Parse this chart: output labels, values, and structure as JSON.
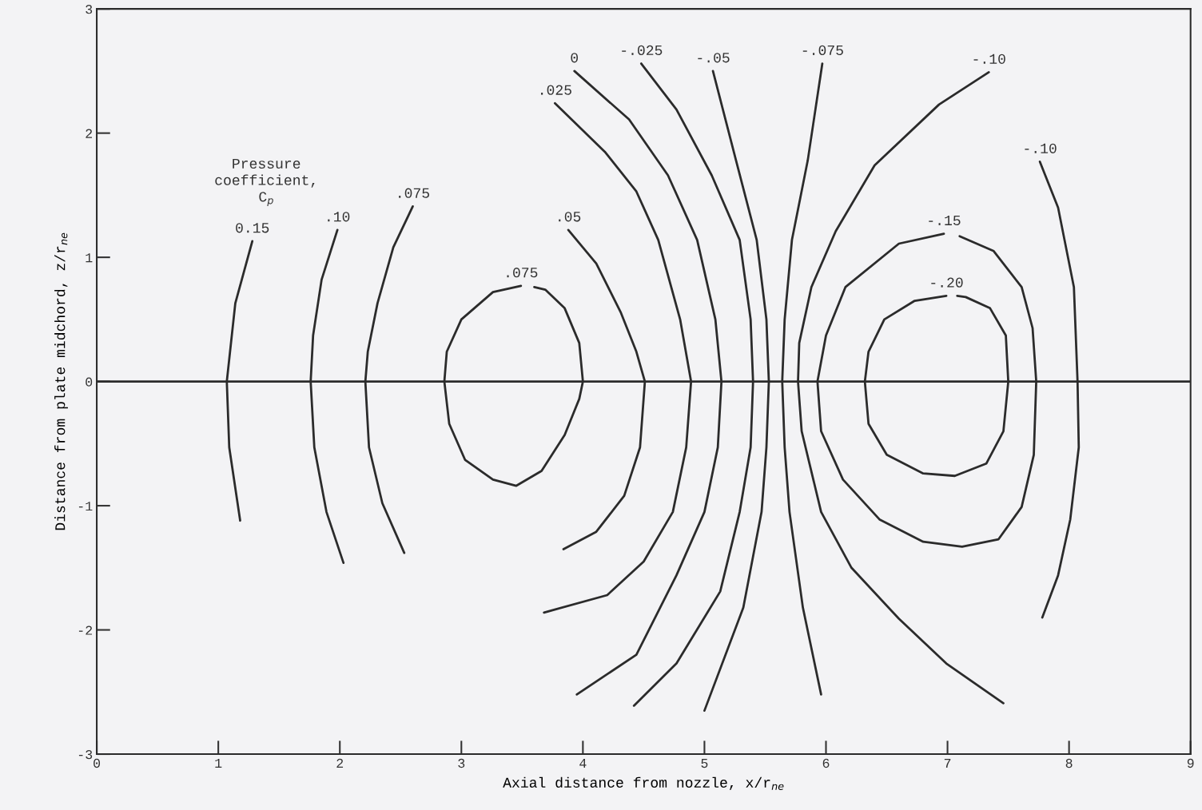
{
  "chart_data": {
    "type": "line",
    "xlabel": "Axial distance from nozzle, x/r$_{ne}$",
    "ylabel": "Distance from plate midchord, z/r$_{ne}$",
    "annotations": [
      "Pressure\ncoefficient,\nC$_{p}$"
    ],
    "xlim": [
      0,
      9
    ],
    "xticks": [
      0,
      1,
      2,
      3,
      4,
      5,
      6,
      7,
      8,
      9
    ],
    "ylim": [
      -3,
      3
    ],
    "yticks": [
      -3,
      -2,
      -1,
      0,
      1,
      2,
      3
    ],
    "grid": false,
    "legend": false,
    "marker": "none",
    "line_style": "solid",
    "ref_lines": [
      {
        "axis": "y",
        "value": 0,
        "color": "#2b2b2b"
      }
    ],
    "series": [
      {
        "name": "0.15",
        "color": "#2b2b2b",
        "x": [
          1.28,
          1.14,
          1.07,
          1.09,
          1.18
        ],
        "values": [
          1.13,
          0.63,
          0,
          -0.53,
          -1.12
        ]
      },
      {
        "name": ".10",
        "color": "#2b2b2b",
        "x": [
          1.98,
          1.85,
          1.78,
          1.76,
          1.79,
          1.89,
          2.03
        ],
        "values": [
          1.22,
          0.82,
          0.37,
          0,
          -0.53,
          -1.05,
          -1.46
        ]
      },
      {
        "name": ".075",
        "color": "#2b2b2b",
        "x": [
          2.6,
          2.44,
          2.31,
          2.23,
          2.21,
          2.24,
          2.35,
          2.53
        ],
        "values": [
          1.41,
          1.08,
          0.63,
          0.24,
          0,
          -0.53,
          -0.98,
          -1.38
        ]
      },
      {
        "name": ".075",
        "color": "#2b2b2b",
        "x": [
          3.49,
          3.26,
          3.0,
          2.88,
          2.86,
          2.9,
          3.03,
          3.26,
          3.45,
          3.66,
          3.85,
          3.97,
          4.0,
          3.97,
          3.85,
          3.69,
          3.6
        ],
        "values": [
          0.77,
          0.72,
          0.5,
          0.24,
          0,
          -0.34,
          -0.63,
          -0.79,
          -0.84,
          -0.72,
          -0.43,
          -0.14,
          0,
          0.31,
          0.59,
          0.74,
          0.76
        ]
      },
      {
        "name": ".05",
        "color": "#2b2b2b",
        "x": [
          3.88,
          4.11,
          4.31,
          4.44,
          4.51,
          4.47,
          4.34,
          4.11,
          3.84
        ],
        "values": [
          1.22,
          0.95,
          0.56,
          0.24,
          0,
          -0.53,
          -0.92,
          -1.21,
          -1.35
        ]
      },
      {
        "name": ".025",
        "color": "#2b2b2b",
        "x": [
          3.77,
          4.18,
          4.44,
          4.62,
          4.8,
          4.89,
          4.85,
          4.74,
          4.5,
          4.2,
          3.68
        ],
        "values": [
          2.24,
          1.85,
          1.53,
          1.14,
          0.5,
          0,
          -0.53,
          -1.05,
          -1.45,
          -1.72,
          -1.86
        ]
      },
      {
        "name": "0",
        "color": "#2b2b2b",
        "x": [
          3.93,
          4.38,
          4.7,
          4.94,
          5.09,
          5.14,
          5.11,
          5.0,
          4.77,
          4.44,
          3.95
        ],
        "values": [
          2.5,
          2.11,
          1.66,
          1.14,
          0.5,
          0,
          -0.53,
          -1.05,
          -1.56,
          -2.2,
          -2.52
        ]
      },
      {
        "name": "-.025",
        "color": "#2b2b2b",
        "x": [
          4.48,
          4.77,
          5.06,
          5.29,
          5.38,
          5.4,
          5.38,
          5.29,
          5.13,
          4.77,
          4.42
        ],
        "values": [
          2.56,
          2.19,
          1.66,
          1.14,
          0.5,
          0,
          -0.53,
          -1.05,
          -1.69,
          -2.27,
          -2.61
        ]
      },
      {
        "name": "-.05",
        "color": "#2b2b2b",
        "x": [
          5.07,
          5.26,
          5.43,
          5.51,
          5.53,
          5.51,
          5.47,
          5.32,
          5.0
        ],
        "values": [
          2.5,
          1.78,
          1.14,
          0.5,
          0,
          -0.53,
          -1.05,
          -1.82,
          -2.65
        ]
      },
      {
        "name": "-.075",
        "color": "#2b2b2b",
        "x": [
          5.97,
          5.85,
          5.72,
          5.66,
          5.64,
          5.66,
          5.7,
          5.81,
          5.96
        ],
        "values": [
          2.56,
          1.78,
          1.14,
          0.5,
          0,
          -0.53,
          -1.05,
          -1.82,
          -2.52
        ]
      },
      {
        "name": "-.10",
        "color": "#2b2b2b",
        "x": [
          7.34,
          6.93,
          6.4,
          6.08,
          5.88,
          5.78,
          5.77,
          5.8,
          5.96,
          6.21,
          6.6,
          6.99,
          7.46
        ],
        "values": [
          2.49,
          2.23,
          1.74,
          1.21,
          0.76,
          0.31,
          0,
          -0.4,
          -1.05,
          -1.5,
          -1.91,
          -2.27,
          -2.59
        ]
      },
      {
        "name": "-.15",
        "color": "#2b2b2b",
        "x": [
          6.97,
          6.6,
          6.16,
          6.0,
          5.93,
          5.96,
          6.14,
          6.44,
          6.8,
          7.12,
          7.42,
          7.61,
          7.71,
          7.73,
          7.7,
          7.61,
          7.38,
          7.1
        ],
        "values": [
          1.19,
          1.11,
          0.76,
          0.37,
          0,
          -0.4,
          -0.79,
          -1.11,
          -1.29,
          -1.33,
          -1.27,
          -1.01,
          -0.59,
          0,
          0.43,
          0.76,
          1.05,
          1.17
        ]
      },
      {
        "name": "-.20",
        "color": "#2b2b2b",
        "x": [
          6.99,
          6.73,
          6.48,
          6.35,
          6.32,
          6.35,
          6.5,
          6.8,
          7.06,
          7.32,
          7.46,
          7.5,
          7.48,
          7.35,
          7.15,
          7.08
        ],
        "values": [
          0.69,
          0.65,
          0.5,
          0.24,
          0,
          -0.34,
          -0.59,
          -0.74,
          -0.76,
          -0.66,
          -0.4,
          0,
          0.37,
          0.59,
          0.68,
          0.69
        ]
      },
      {
        "name": "-.10",
        "color": "#2b2b2b",
        "x": [
          7.76,
          7.91,
          8.04,
          8.07,
          8.08,
          8.01,
          7.91,
          7.78
        ],
        "values": [
          1.77,
          1.4,
          0.76,
          0,
          -0.53,
          -1.11,
          -1.56,
          -1.9
        ]
      }
    ]
  }
}
